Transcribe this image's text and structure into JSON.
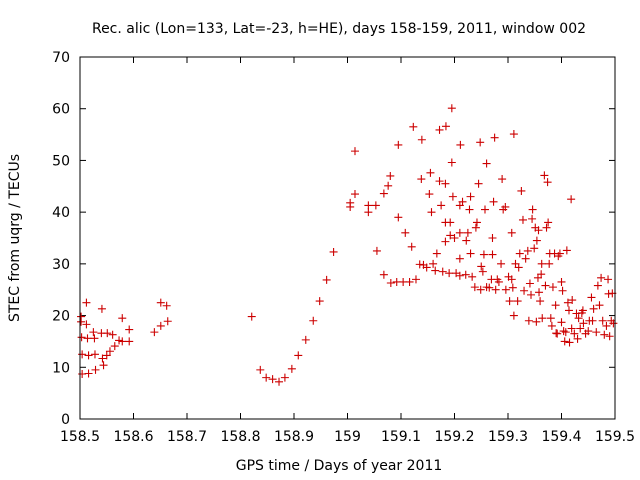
{
  "chart_data": {
    "type": "scatter",
    "title": "Rec. alic (Lon=133, Lat=-23, h=HE), days 158-159, 2011, window 002",
    "xlabel": "GPS time / Days of year 2011",
    "ylabel": "STEC from uqrg / TECUs",
    "xlim": [
      158.5,
      159.5
    ],
    "ylim": [
      0,
      70
    ],
    "xticks": [
      "158.5",
      "158.6",
      "158.7",
      "158.8",
      "158.9",
      "159",
      "159.1",
      "159.2",
      "159.3",
      "159.4",
      "159.5"
    ],
    "yticks": [
      "0",
      "10",
      "20",
      "30",
      "40",
      "50",
      "60",
      "70"
    ],
    "grid": false,
    "legend": "none",
    "marker": "plus",
    "color": "#cc0000",
    "points": [
      [
        158.502,
        19.8
      ],
      [
        158.502,
        18.8
      ],
      [
        158.503,
        15.8
      ],
      [
        158.504,
        12.5
      ],
      [
        158.504,
        8.7
      ],
      [
        158.512,
        22.5
      ],
      [
        158.512,
        18.3
      ],
      [
        158.514,
        15.6
      ],
      [
        158.516,
        12.3
      ],
      [
        158.516,
        8.8
      ],
      [
        158.525,
        16.8
      ],
      [
        158.527,
        15.6
      ],
      [
        158.528,
        12.5
      ],
      [
        158.529,
        9.5
      ],
      [
        158.541,
        21.3
      ],
      [
        158.54,
        16.6
      ],
      [
        158.542,
        11.7
      ],
      [
        158.544,
        10.4
      ],
      [
        158.551,
        16.6
      ],
      [
        158.55,
        12.3
      ],
      [
        158.556,
        13.1
      ],
      [
        158.561,
        16.3
      ],
      [
        158.565,
        14.1
      ],
      [
        158.573,
        15.2
      ],
      [
        158.579,
        19.5
      ],
      [
        158.579,
        15.0
      ],
      [
        158.592,
        17.3
      ],
      [
        158.592,
        15.0
      ],
      [
        158.639,
        16.8
      ],
      [
        158.651,
        22.5
      ],
      [
        158.651,
        18.0
      ],
      [
        158.662,
        21.9
      ],
      [
        158.664,
        18.9
      ],
      [
        158.821,
        19.8
      ],
      [
        158.837,
        9.5
      ],
      [
        158.848,
        8.0
      ],
      [
        158.86,
        7.7
      ],
      [
        158.872,
        7.2
      ],
      [
        158.883,
        8.0
      ],
      [
        158.896,
        9.7
      ],
      [
        158.908,
        12.3
      ],
      [
        158.922,
        15.3
      ],
      [
        158.936,
        19.0
      ],
      [
        158.948,
        22.8
      ],
      [
        158.961,
        26.9
      ],
      [
        158.974,
        32.3
      ],
      [
        159.005,
        41.8
      ],
      [
        159.005,
        41.0
      ],
      [
        159.014,
        43.5
      ],
      [
        159.014,
        51.8
      ],
      [
        159.039,
        40.0
      ],
      [
        159.039,
        41.3
      ],
      [
        159.053,
        41.3
      ],
      [
        159.055,
        32.5
      ],
      [
        159.068,
        27.9
      ],
      [
        159.068,
        43.6
      ],
      [
        159.076,
        45.1
      ],
      [
        159.08,
        47.0
      ],
      [
        159.081,
        26.3
      ],
      [
        159.092,
        26.5
      ],
      [
        159.095,
        39.0
      ],
      [
        159.095,
        53.0
      ],
      [
        159.104,
        26.5
      ],
      [
        159.108,
        36.0
      ],
      [
        159.116,
        26.5
      ],
      [
        159.12,
        33.3
      ],
      [
        159.123,
        56.5
      ],
      [
        159.128,
        27.0
      ],
      [
        159.135,
        29.9
      ],
      [
        159.138,
        46.4
      ],
      [
        159.139,
        54.0
      ],
      [
        159.142,
        29.8
      ],
      [
        159.148,
        29.3
      ],
      [
        159.153,
        43.5
      ],
      [
        159.155,
        47.6
      ],
      [
        159.157,
        40.0
      ],
      [
        159.16,
        30.0
      ],
      [
        159.164,
        28.7
      ],
      [
        159.167,
        32.0
      ],
      [
        159.172,
        46.0
      ],
      [
        159.172,
        55.9
      ],
      [
        159.175,
        41.3
      ],
      [
        159.178,
        28.5
      ],
      [
        159.183,
        34.3
      ],
      [
        159.183,
        38.0
      ],
      [
        159.183,
        45.5
      ],
      [
        159.184,
        56.6
      ],
      [
        159.19,
        28.2
      ],
      [
        159.192,
        35.5
      ],
      [
        159.192,
        38.0
      ],
      [
        159.195,
        49.6
      ],
      [
        159.195,
        60.1
      ],
      [
        159.197,
        43.0
      ],
      [
        159.2,
        35.0
      ],
      [
        159.203,
        28.2
      ],
      [
        159.21,
        27.7
      ],
      [
        159.21,
        31.0
      ],
      [
        159.21,
        36.0
      ],
      [
        159.21,
        41.3
      ],
      [
        159.211,
        53.0
      ],
      [
        159.215,
        42.0
      ],
      [
        159.221,
        27.9
      ],
      [
        159.222,
        34.5
      ],
      [
        159.225,
        36.0
      ],
      [
        159.228,
        40.5
      ],
      [
        159.23,
        43.0
      ],
      [
        159.23,
        32.0
      ],
      [
        159.233,
        27.5
      ],
      [
        159.238,
        25.5
      ],
      [
        159.24,
        37.0
      ],
      [
        159.242,
        38.0
      ],
      [
        159.245,
        45.5
      ],
      [
        159.248,
        53.5
      ],
      [
        159.249,
        25.0
      ],
      [
        159.25,
        29.5
      ],
      [
        159.253,
        28.5
      ],
      [
        159.255,
        31.8
      ],
      [
        159.257,
        40.5
      ],
      [
        159.26,
        49.4
      ],
      [
        159.26,
        25.5
      ],
      [
        159.265,
        25.4
      ],
      [
        159.269,
        27.0
      ],
      [
        159.271,
        31.8
      ],
      [
        159.271,
        35.0
      ],
      [
        159.273,
        42.0
      ],
      [
        159.275,
        54.4
      ],
      [
        159.277,
        25.0
      ],
      [
        159.28,
        27.0
      ],
      [
        159.283,
        26.5
      ],
      [
        159.287,
        30.0
      ],
      [
        159.289,
        46.4
      ],
      [
        159.291,
        40.5
      ],
      [
        159.295,
        41.0
      ],
      [
        159.296,
        25.0
      ],
      [
        159.301,
        27.5
      ],
      [
        159.303,
        22.8
      ],
      [
        159.307,
        27.0
      ],
      [
        159.307,
        36.0
      ],
      [
        159.309,
        25.4
      ],
      [
        159.311,
        20.0
      ],
      [
        159.311,
        55.1
      ],
      [
        159.314,
        30.0
      ],
      [
        159.318,
        22.8
      ],
      [
        159.32,
        29.3
      ],
      [
        159.322,
        32.0
      ],
      [
        159.325,
        44.1
      ],
      [
        159.328,
        38.5
      ],
      [
        159.33,
        24.8
      ],
      [
        159.333,
        31.0
      ],
      [
        159.337,
        32.5
      ],
      [
        159.339,
        19.0
      ],
      [
        159.341,
        26.2
      ],
      [
        159.343,
        24.0
      ],
      [
        159.345,
        38.7
      ],
      [
        159.346,
        40.5
      ],
      [
        159.349,
        33.0
      ],
      [
        159.351,
        37.0
      ],
      [
        159.353,
        18.8
      ],
      [
        159.354,
        34.5
      ],
      [
        159.356,
        27.3
      ],
      [
        159.357,
        36.5
      ],
      [
        159.358,
        24.5
      ],
      [
        159.36,
        22.8
      ],
      [
        159.362,
        28.0
      ],
      [
        159.363,
        30.0
      ],
      [
        159.364,
        19.5
      ],
      [
        159.368,
        47.1
      ],
      [
        159.37,
        25.8
      ],
      [
        159.372,
        37.0
      ],
      [
        159.374,
        45.8
      ],
      [
        159.375,
        38.0
      ],
      [
        159.377,
        30.0
      ],
      [
        159.378,
        32.0
      ],
      [
        159.38,
        19.5
      ],
      [
        159.382,
        18.0
      ],
      [
        159.384,
        25.5
      ],
      [
        159.387,
        32.0
      ],
      [
        159.389,
        22.0
      ],
      [
        159.39,
        16.6
      ],
      [
        159.392,
        16.5
      ],
      [
        159.394,
        31.5
      ],
      [
        159.397,
        32.0
      ],
      [
        159.4,
        26.5
      ],
      [
        159.4,
        18.7
      ],
      [
        159.402,
        24.8
      ],
      [
        159.404,
        17.0
      ],
      [
        159.406,
        15.0
      ],
      [
        159.408,
        16.8
      ],
      [
        159.41,
        32.6
      ],
      [
        159.412,
        22.5
      ],
      [
        159.414,
        21.0
      ],
      [
        159.415,
        14.8
      ],
      [
        159.418,
        42.5
      ],
      [
        159.419,
        17.5
      ],
      [
        159.42,
        23.0
      ],
      [
        159.424,
        16.5
      ],
      [
        159.428,
        20.4
      ],
      [
        159.43,
        15.5
      ],
      [
        159.432,
        19.5
      ],
      [
        159.435,
        17.5
      ],
      [
        159.438,
        20.5
      ],
      [
        159.44,
        21.0
      ],
      [
        159.441,
        18.5
      ],
      [
        159.445,
        16.5
      ],
      [
        159.45,
        17.0
      ],
      [
        159.452,
        19.0
      ],
      [
        159.456,
        23.5
      ],
      [
        159.458,
        19.0
      ],
      [
        159.46,
        21.3
      ],
      [
        159.465,
        16.8
      ],
      [
        159.468,
        25.8
      ],
      [
        159.471,
        22.0
      ],
      [
        159.474,
        27.3
      ],
      [
        159.477,
        19.0
      ],
      [
        159.48,
        16.3
      ],
      [
        159.484,
        18.0
      ],
      [
        159.487,
        27.0
      ],
      [
        159.488,
        24.2
      ],
      [
        159.49,
        16.0
      ],
      [
        159.493,
        19.0
      ],
      [
        159.495,
        24.3
      ],
      [
        159.497,
        18.5
      ]
    ]
  }
}
